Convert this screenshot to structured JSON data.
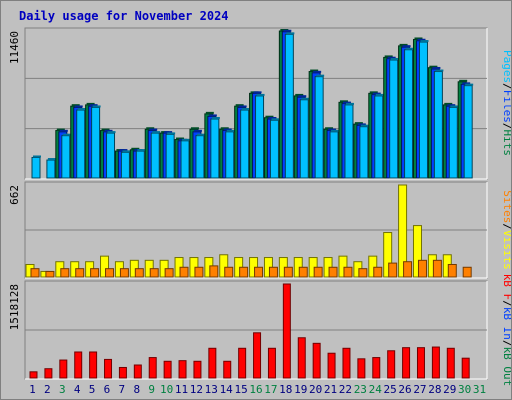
{
  "title": "Daily usage for November 2024",
  "colors": {
    "background": "#c0c0c0",
    "title": "#0000c0",
    "hits": "#008040",
    "files": "#0040ff",
    "pages": "#00c0ff",
    "visits": "#ffff00",
    "sites": "#ff8000",
    "kb_out": "#008040",
    "kb_in": "#0040ff",
    "kb_f": "#ff0000",
    "weekend_day_label": "#008040",
    "weekday_label": "#000080"
  },
  "chart_data": [
    {
      "type": "bar",
      "panel": "hits-files-pages",
      "max_label": "11460",
      "ylim": [
        0,
        11460
      ],
      "legend": [
        "Pages",
        "Files",
        "Hits"
      ],
      "categories": [
        "1",
        "2",
        "3",
        "4",
        "5",
        "6",
        "7",
        "8",
        "9",
        "10",
        "11",
        "12",
        "13",
        "14",
        "15",
        "16",
        "17",
        "18",
        "19",
        "20",
        "21",
        "22",
        "23",
        "24",
        "25",
        "26",
        "27",
        "28",
        "29",
        "30",
        "31"
      ],
      "weekend_days": [
        "3",
        "9",
        "10",
        "16",
        "17",
        "23",
        "24",
        "30",
        "31"
      ],
      "series": [
        {
          "name": "Hits",
          "values": [
            0,
            0,
            3700,
            5600,
            5700,
            3700,
            2100,
            2200,
            3800,
            3500,
            3000,
            3800,
            5000,
            3800,
            5600,
            6600,
            4700,
            11460,
            6400,
            8300,
            3800,
            5900,
            4200,
            6600,
            9400,
            10300,
            10800,
            8600,
            5700,
            7500,
            0
          ]
        },
        {
          "name": "Files",
          "values": [
            0,
            0,
            3600,
            5500,
            5600,
            3600,
            2100,
            2100,
            3700,
            3500,
            2900,
            3600,
            4800,
            3700,
            5500,
            6600,
            4600,
            11400,
            6300,
            8200,
            3700,
            5800,
            4100,
            6500,
            9300,
            10200,
            10700,
            8500,
            5600,
            7300,
            0
          ]
        },
        {
          "name": "Pages",
          "values": [
            1600,
            1400,
            3300,
            5300,
            5500,
            3500,
            2000,
            2100,
            3500,
            3400,
            2900,
            3300,
            4600,
            3600,
            5300,
            6400,
            4500,
            11200,
            6100,
            7900,
            3600,
            5700,
            4000,
            6400,
            9200,
            10000,
            10600,
            8300,
            5500,
            7200,
            0
          ]
        }
      ]
    },
    {
      "type": "bar",
      "panel": "visits-sites",
      "max_label": "662",
      "ylim": [
        0,
        662
      ],
      "legend": [
        "Sites",
        "Visits"
      ],
      "categories": [
        "1",
        "2",
        "3",
        "4",
        "5",
        "6",
        "7",
        "8",
        "9",
        "10",
        "11",
        "12",
        "13",
        "14",
        "15",
        "16",
        "17",
        "18",
        "19",
        "20",
        "21",
        "22",
        "23",
        "24",
        "25",
        "26",
        "27",
        "28",
        "29",
        "30",
        "31"
      ],
      "series": [
        {
          "name": "Visits",
          "values": [
            90,
            40,
            110,
            110,
            110,
            150,
            110,
            120,
            120,
            120,
            140,
            140,
            140,
            160,
            140,
            140,
            140,
            140,
            140,
            140,
            140,
            150,
            110,
            150,
            320,
            662,
            370,
            160,
            160,
            0,
            0
          ]
        },
        {
          "name": "Sites",
          "values": [
            60,
            40,
            60,
            60,
            60,
            60,
            60,
            60,
            60,
            60,
            70,
            70,
            80,
            70,
            70,
            70,
            70,
            70,
            70,
            70,
            70,
            70,
            60,
            70,
            100,
            110,
            120,
            120,
            90,
            70,
            0
          ]
        }
      ]
    },
    {
      "type": "bar",
      "panel": "kbytes",
      "max_label": "1518128",
      "ylim": [
        0,
        1518128
      ],
      "legend": [
        "kB F",
        "kB In",
        "kB Out"
      ],
      "categories": [
        "1",
        "2",
        "3",
        "4",
        "5",
        "6",
        "7",
        "8",
        "9",
        "10",
        "11",
        "12",
        "13",
        "14",
        "15",
        "16",
        "17",
        "18",
        "19",
        "20",
        "21",
        "22",
        "23",
        "24",
        "25",
        "26",
        "27",
        "28",
        "29",
        "30",
        "31"
      ],
      "series": [
        {
          "name": "kB F",
          "values": [
            100000,
            150000,
            290000,
            420000,
            420000,
            300000,
            170000,
            210000,
            330000,
            270000,
            280000,
            270000,
            480000,
            270000,
            480000,
            730000,
            480000,
            1518128,
            650000,
            560000,
            400000,
            480000,
            310000,
            330000,
            440000,
            490000,
            490000,
            500000,
            480000,
            320000,
            0
          ]
        }
      ]
    }
  ],
  "day_labels": [
    "1",
    "2",
    "3",
    "4",
    "5",
    "6",
    "7",
    "8",
    "9",
    "10",
    "11",
    "12",
    "13",
    "14",
    "15",
    "16",
    "17",
    "18",
    "19",
    "20",
    "21",
    "22",
    "23",
    "24",
    "25",
    "26",
    "27",
    "28",
    "29",
    "30",
    "31"
  ]
}
